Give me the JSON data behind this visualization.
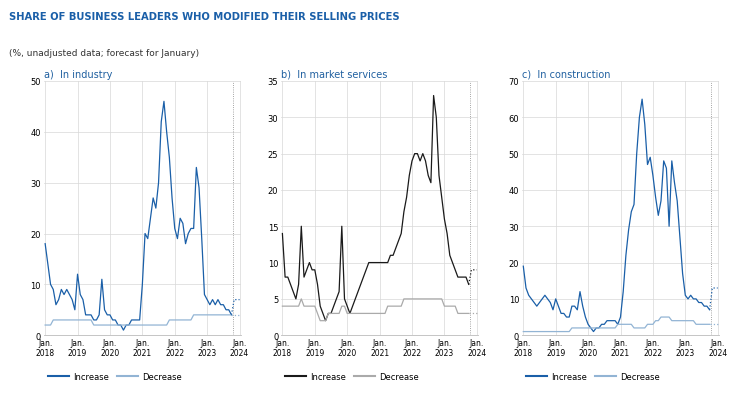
{
  "title": "SHARE OF BUSINESS LEADERS WHO MODIFIED THEIR SELLING PRICES",
  "subtitle": "(%, unadjusted data; forecast for January)",
  "panel_a_title": "a)  In industry",
  "panel_b_title": "b)  In market services",
  "panel_c_title": "c)  In construction",
  "color_increase_industry": "#1a5fa8",
  "color_decrease_industry": "#92b4d4",
  "color_increase_services": "#1a1a1a",
  "color_decrease_services": "#aaaaaa",
  "color_increase_construction": "#1a5fa8",
  "color_decrease_construction": "#92b4d4",
  "ylim_a": [
    0,
    50
  ],
  "ylim_b": [
    0,
    35
  ],
  "ylim_c": [
    0,
    70
  ],
  "yticks_a": [
    0,
    10,
    20,
    30,
    40,
    50
  ],
  "yticks_b": [
    0,
    5,
    10,
    15,
    20,
    25,
    30,
    35
  ],
  "yticks_c": [
    0,
    10,
    20,
    30,
    40,
    50,
    60,
    70
  ],
  "industry_increase": [
    18,
    14,
    10,
    9,
    6,
    7,
    9,
    8,
    9,
    8,
    7,
    5,
    12,
    8,
    7,
    4,
    4,
    4,
    3,
    3,
    4,
    11,
    5,
    4,
    4,
    3,
    3,
    2,
    2,
    1,
    2,
    2,
    3,
    3,
    3,
    3,
    10,
    20,
    19,
    23,
    27,
    25,
    30,
    42,
    46,
    40,
    35,
    27,
    21,
    19,
    23,
    22,
    18,
    20,
    21,
    21,
    33,
    29,
    19,
    8,
    7,
    6,
    7,
    6,
    7,
    6,
    6,
    5,
    5,
    4,
    7
  ],
  "industry_decrease": [
    2,
    2,
    2,
    3,
    3,
    3,
    3,
    3,
    3,
    3,
    3,
    3,
    3,
    3,
    3,
    3,
    3,
    3,
    2,
    2,
    2,
    2,
    2,
    2,
    2,
    2,
    2,
    2,
    2,
    2,
    2,
    2,
    2,
    2,
    2,
    2,
    2,
    2,
    2,
    2,
    2,
    2,
    2,
    2,
    2,
    2,
    3,
    3,
    3,
    3,
    3,
    3,
    3,
    3,
    3,
    4,
    4,
    4,
    4,
    4,
    4,
    4,
    4,
    4,
    4,
    4,
    4,
    4,
    4,
    4,
    4
  ],
  "services_increase": [
    14,
    8,
    8,
    7,
    6,
    5,
    7,
    15,
    8,
    9,
    10,
    9,
    9,
    7,
    4,
    3,
    2,
    3,
    3,
    4,
    5,
    6,
    15,
    5,
    4,
    3,
    4,
    5,
    6,
    7,
    8,
    9,
    10,
    10,
    10,
    10,
    10,
    10,
    10,
    10,
    11,
    11,
    12,
    13,
    14,
    17,
    19,
    22,
    24,
    25,
    25,
    24,
    25,
    24,
    22,
    21,
    33,
    30,
    22,
    19,
    16,
    14,
    11,
    10,
    9,
    8,
    8,
    8,
    8,
    7,
    9
  ],
  "services_decrease": [
    4,
    4,
    4,
    4,
    4,
    4,
    4,
    5,
    4,
    4,
    4,
    4,
    4,
    3,
    2,
    2,
    2,
    3,
    3,
    3,
    3,
    3,
    4,
    4,
    3,
    3,
    3,
    3,
    3,
    3,
    3,
    3,
    3,
    3,
    3,
    3,
    3,
    3,
    3,
    4,
    4,
    4,
    4,
    4,
    4,
    5,
    5,
    5,
    5,
    5,
    5,
    5,
    5,
    5,
    5,
    5,
    5,
    5,
    5,
    5,
    4,
    4,
    4,
    4,
    4,
    3,
    3,
    3,
    3,
    3,
    3
  ],
  "construction_increase": [
    19,
    13,
    11,
    10,
    9,
    8,
    9,
    10,
    11,
    10,
    9,
    7,
    10,
    8,
    6,
    6,
    5,
    5,
    8,
    8,
    7,
    12,
    8,
    5,
    3,
    2,
    1,
    2,
    2,
    3,
    3,
    4,
    4,
    4,
    4,
    3,
    5,
    12,
    22,
    29,
    34,
    36,
    50,
    60,
    65,
    58,
    47,
    49,
    44,
    38,
    33,
    37,
    48,
    46,
    30,
    48,
    42,
    37,
    27,
    17,
    11,
    10,
    11,
    10,
    10,
    9,
    9,
    8,
    8,
    7,
    13
  ],
  "construction_decrease": [
    1,
    1,
    1,
    1,
    1,
    1,
    1,
    1,
    1,
    1,
    1,
    1,
    1,
    1,
    1,
    1,
    1,
    1,
    2,
    2,
    2,
    2,
    2,
    2,
    2,
    2,
    2,
    2,
    2,
    2,
    2,
    2,
    2,
    2,
    2,
    3,
    3,
    3,
    3,
    3,
    3,
    2,
    2,
    2,
    2,
    2,
    3,
    3,
    3,
    4,
    4,
    5,
    5,
    5,
    5,
    4,
    4,
    4,
    4,
    4,
    4,
    4,
    4,
    4,
    3,
    3,
    3,
    3,
    3,
    3,
    3
  ]
}
